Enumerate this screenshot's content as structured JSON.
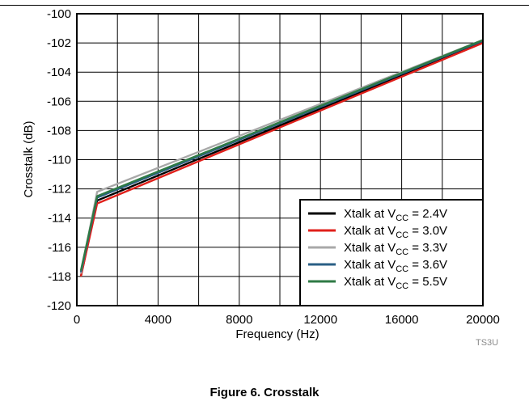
{
  "caption": "Figure 6. Crosstalk",
  "watermark": "TS3U",
  "chart_data": {
    "type": "line",
    "title": "",
    "xlabel": "Frequency (Hz)",
    "ylabel": "Crosstalk (dB)",
    "xlim": [
      0,
      20000
    ],
    "ylim": [
      -120,
      -100
    ],
    "x_ticks": [
      0,
      4000,
      8000,
      12000,
      16000,
      20000
    ],
    "y_ticks": [
      -100,
      -102,
      -104,
      -106,
      -108,
      -110,
      -112,
      -114,
      -116,
      -118,
      -120
    ],
    "x_tick_labels": [
      "0",
      "4000",
      "8000",
      "12000",
      "16000",
      "20000"
    ],
    "y_tick_labels": [
      "-100",
      "-102",
      "-104",
      "-106",
      "-108",
      "-110",
      "-112",
      "-114",
      "-116",
      "-118",
      "-120"
    ],
    "grid": true,
    "grid_minor_x": true,
    "legend_position": "bottom-right",
    "series": [
      {
        "name": "Xtalk at VCC = 2.4V",
        "label_prefix": "Xtalk at V",
        "label_sub": "CC",
        "label_suffix": " = 2.4V",
        "color": "#000000",
        "x": [
          200,
          1000,
          20000
        ],
        "y": [
          -118.0,
          -112.8,
          -101.95
        ]
      },
      {
        "name": "Xtalk at VCC = 3.0V",
        "label_prefix": "Xtalk at V",
        "label_sub": "CC",
        "label_suffix": " = 3.0V",
        "color": "#e0201b",
        "x": [
          200,
          1000,
          20000
        ],
        "y": [
          -118.0,
          -113.0,
          -102.0
        ]
      },
      {
        "name": "Xtalk at VCC = 3.3V",
        "label_prefix": "Xtalk at V",
        "label_sub": "CC",
        "label_suffix": " = 3.3V",
        "color": "#a8a8a8",
        "x": [
          200,
          1000,
          20000
        ],
        "y": [
          -117.8,
          -112.2,
          -101.8
        ]
      },
      {
        "name": "Xtalk at VCC = 3.6V",
        "label_prefix": "Xtalk at V",
        "label_sub": "CC",
        "label_suffix": " = 3.6V",
        "color": "#2a5f85",
        "x": [
          200,
          1000,
          20000
        ],
        "y": [
          -117.7,
          -112.6,
          -101.85
        ]
      },
      {
        "name": "Xtalk at VCC = 5.5V",
        "label_prefix": "Xtalk at V",
        "label_sub": "CC",
        "label_suffix": " = 5.5V",
        "color": "#2e7a45",
        "x": [
          200,
          1000,
          20000
        ],
        "y": [
          -117.6,
          -112.5,
          -101.8
        ]
      }
    ]
  }
}
